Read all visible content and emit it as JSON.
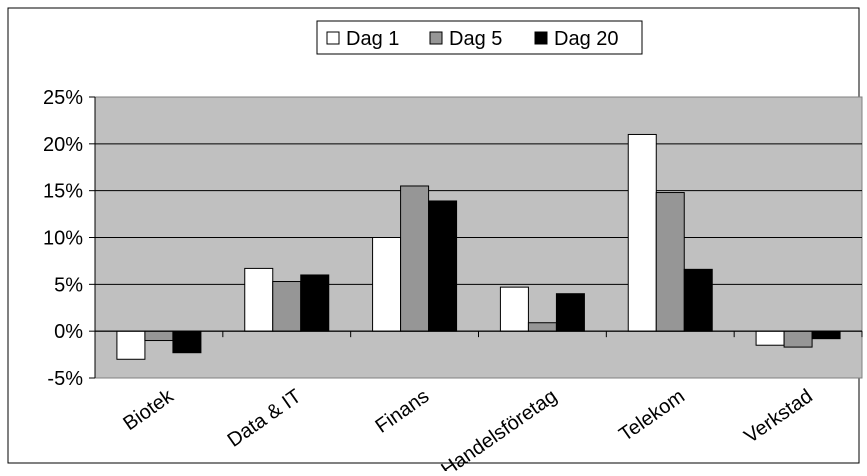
{
  "chart_data": {
    "type": "bar",
    "categories": [
      "Biotek",
      "Data & IT",
      "Finans",
      "Handelsföretag",
      "Telekom",
      "Verkstad"
    ],
    "series": [
      {
        "name": "Dag 1",
        "color": "#ffffff",
        "values": [
          -3.0,
          6.7,
          10.0,
          4.7,
          21.0,
          -1.5
        ]
      },
      {
        "name": "Dag 5",
        "color": "#969696",
        "values": [
          -1.0,
          5.3,
          15.5,
          0.9,
          14.8,
          -1.7
        ]
      },
      {
        "name": "Dag 20",
        "color": "#000000",
        "values": [
          -2.3,
          6.0,
          13.9,
          4.0,
          6.6,
          -0.8
        ]
      }
    ],
    "y_ticks": [
      "25%",
      "20%",
      "15%",
      "10%",
      "5%",
      "0%",
      "-5%"
    ],
    "ylim": [
      -5,
      25
    ],
    "legend_position": "top",
    "plot_background": "#c0c0c0",
    "grid": true
  }
}
